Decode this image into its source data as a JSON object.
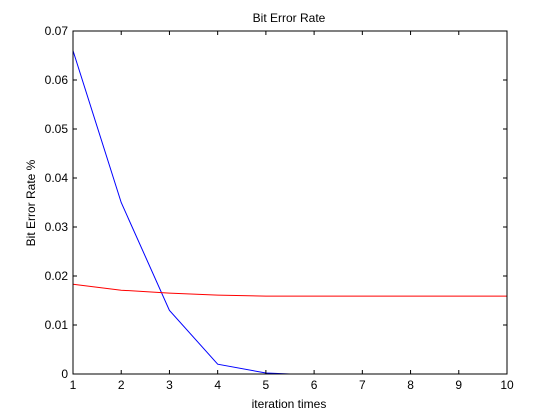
{
  "chart_data": {
    "type": "line",
    "title": "Bit Error Rate",
    "xlabel": "iteration times",
    "ylabel": "Bit Error Rate  %",
    "xlim": [
      1,
      10
    ],
    "ylim": [
      0,
      0.07
    ],
    "xticks": [
      1,
      2,
      3,
      4,
      5,
      6,
      7,
      8,
      9,
      10
    ],
    "xtick_labels": [
      "1",
      "2",
      "3",
      "4",
      "5",
      "6",
      "7",
      "8",
      "9",
      "10"
    ],
    "yticks": [
      0,
      0.01,
      0.02,
      0.03,
      0.04,
      0.05,
      0.06,
      0.07
    ],
    "ytick_labels": [
      "0",
      "0.01",
      "0.02",
      "0.03",
      "0.04",
      "0.05",
      "0.06",
      "0.07"
    ],
    "grid": false,
    "legend": "none",
    "series": [
      {
        "color": "#0000ff",
        "x": [
          1,
          2,
          3,
          4,
          5,
          5.5
        ],
        "y": [
          0.066,
          0.035,
          0.013,
          0.002,
          0.0002,
          0.0
        ]
      },
      {
        "color": "#ff0000",
        "x": [
          1,
          2,
          3,
          4,
          5,
          6,
          7,
          8,
          9,
          10
        ],
        "y": [
          0.0183,
          0.0171,
          0.0165,
          0.0161,
          0.0159,
          0.0159,
          0.0159,
          0.0159,
          0.0159,
          0.0159
        ]
      }
    ]
  }
}
